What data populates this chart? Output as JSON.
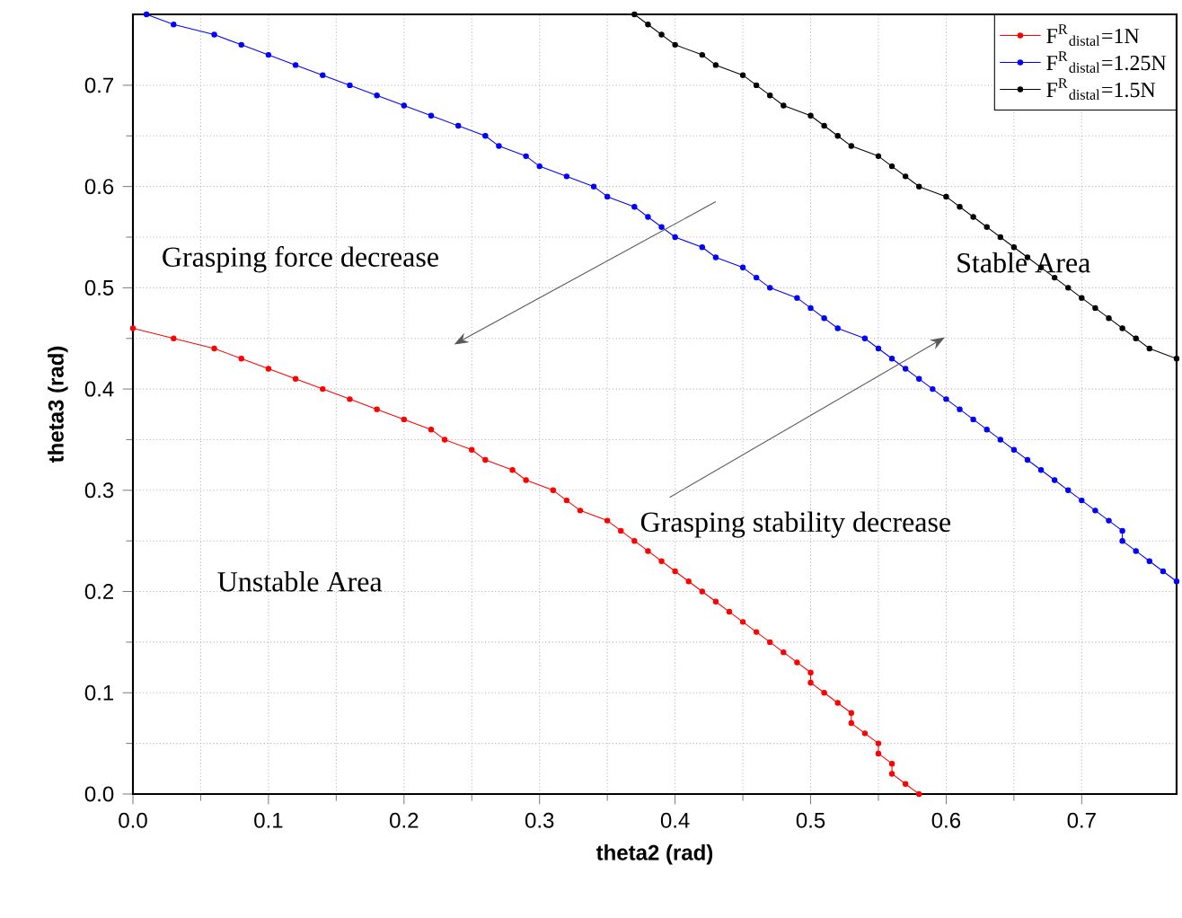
{
  "chart_data": {
    "type": "line",
    "xlabel": "theta2 (rad)",
    "ylabel": "theta3 (rad)",
    "xlim": [
      0,
      0.77
    ],
    "ylim": [
      0,
      0.77
    ],
    "xticks": [
      {
        "value": 0,
        "label": "0.0"
      },
      0.1,
      0.2,
      0.3,
      0.4,
      0.5,
      0.6,
      0.7
    ],
    "yticks": [
      {
        "value": 0,
        "label": "0.0"
      },
      0.1,
      0.2,
      0.3,
      0.4,
      0.5,
      0.6,
      0.7
    ],
    "grid": true,
    "legend": "top right",
    "marker": "circle",
    "line_style": "solid",
    "annotations": [
      "Grasping force decrease",
      "Stable Area",
      "Unstable Area",
      "Grasping stability decrease"
    ],
    "series": [
      {
        "name": "F$^{R}$$_{distal}$=1N",
        "color": "#ff0000",
        "x": [
          0,
          0.03,
          0.06,
          0.08,
          0.1,
          0.12,
          0.14,
          0.16,
          0.18,
          0.2,
          0.22,
          0.23,
          0.25,
          0.26,
          0.28,
          0.29,
          0.31,
          0.32,
          0.33,
          0.35,
          0.36,
          0.37,
          0.38,
          0.39,
          0.4,
          0.41,
          0.42,
          0.43,
          0.44,
          0.45,
          0.46,
          0.47,
          0.48,
          0.49,
          0.5,
          0.5,
          0.51,
          0.52,
          0.53,
          0.53,
          0.54,
          0.55,
          0.55,
          0.56,
          0.56,
          0.57,
          0.58
        ],
        "values": [
          0.46,
          0.45,
          0.44,
          0.43,
          0.42,
          0.41,
          0.4,
          0.39,
          0.38,
          0.37,
          0.36,
          0.35,
          0.34,
          0.33,
          0.32,
          0.31,
          0.3,
          0.29,
          0.28,
          0.27,
          0.26,
          0.25,
          0.24,
          0.23,
          0.22,
          0.21,
          0.2,
          0.19,
          0.18,
          0.17,
          0.16,
          0.15,
          0.14,
          0.13,
          0.12,
          0.11,
          0.1,
          0.09,
          0.08,
          0.07,
          0.06,
          0.05,
          0.04,
          0.03,
          0.02,
          0.01,
          0
        ]
      },
      {
        "name": "F$^{R}$$_{distal}$=1.25N",
        "color": "#0000ff",
        "x": [
          0.01,
          0.03,
          0.06,
          0.08,
          0.1,
          0.12,
          0.14,
          0.16,
          0.18,
          0.2,
          0.22,
          0.24,
          0.26,
          0.27,
          0.29,
          0.3,
          0.32,
          0.34,
          0.35,
          0.37,
          0.38,
          0.39,
          0.4,
          0.42,
          0.43,
          0.45,
          0.46,
          0.47,
          0.49,
          0.5,
          0.51,
          0.52,
          0.54,
          0.55,
          0.56,
          0.57,
          0.58,
          0.59,
          0.6,
          0.61,
          0.62,
          0.63,
          0.64,
          0.65,
          0.66,
          0.67,
          0.68,
          0.69,
          0.7,
          0.71,
          0.72,
          0.73,
          0.73,
          0.74,
          0.75,
          0.76,
          0.77
        ],
        "values": [
          0.77,
          0.76,
          0.75,
          0.74,
          0.73,
          0.72,
          0.71,
          0.7,
          0.69,
          0.68,
          0.67,
          0.66,
          0.65,
          0.64,
          0.63,
          0.62,
          0.61,
          0.6,
          0.59,
          0.58,
          0.57,
          0.56,
          0.55,
          0.54,
          0.53,
          0.52,
          0.51,
          0.5,
          0.49,
          0.48,
          0.47,
          0.46,
          0.45,
          0.44,
          0.43,
          0.42,
          0.41,
          0.4,
          0.39,
          0.38,
          0.37,
          0.36,
          0.35,
          0.34,
          0.33,
          0.32,
          0.31,
          0.3,
          0.29,
          0.28,
          0.27,
          0.26,
          0.25,
          0.24,
          0.23,
          0.22,
          0.21
        ]
      },
      {
        "name": "F$^{R}$$_{distal}$=1.5N",
        "color": "#000000",
        "x": [
          0.37,
          0.38,
          0.39,
          0.4,
          0.42,
          0.43,
          0.45,
          0.46,
          0.47,
          0.48,
          0.5,
          0.51,
          0.52,
          0.53,
          0.55,
          0.56,
          0.57,
          0.58,
          0.6,
          0.61,
          0.62,
          0.63,
          0.64,
          0.65,
          0.66,
          0.67,
          0.68,
          0.69,
          0.7,
          0.71,
          0.72,
          0.73,
          0.74,
          0.75,
          0.77
        ],
        "values": [
          0.77,
          0.76,
          0.75,
          0.74,
          0.73,
          0.72,
          0.71,
          0.7,
          0.69,
          0.68,
          0.67,
          0.66,
          0.65,
          0.64,
          0.63,
          0.62,
          0.61,
          0.6,
          0.59,
          0.58,
          0.57,
          0.56,
          0.55,
          0.54,
          0.53,
          0.52,
          0.51,
          0.5,
          0.49,
          0.48,
          0.47,
          0.46,
          0.45,
          0.44,
          0.43
        ]
      }
    ]
  }
}
